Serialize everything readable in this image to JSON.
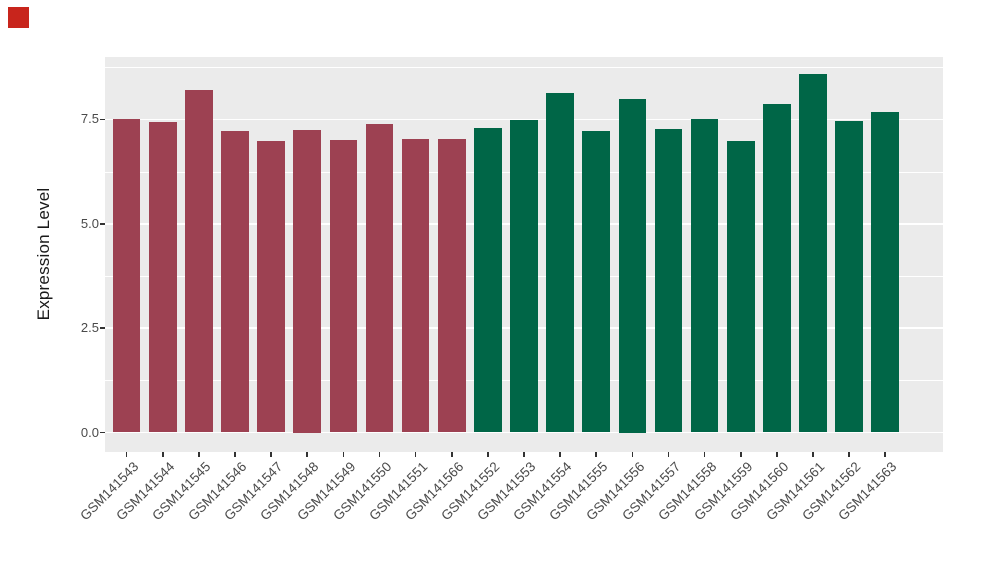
{
  "figure": {
    "background": "#FFFFFF",
    "corner_marker_color": "#C8251C"
  },
  "chart_data": {
    "type": "bar",
    "title": "",
    "xlabel": "",
    "ylabel": "Expression Level",
    "categories": [
      "GSM141543",
      "GSM141544",
      "GSM141545",
      "GSM141546",
      "GSM141547",
      "GSM141548",
      "GSM141549",
      "GSM141550",
      "GSM141551",
      "GSM141566",
      "GSM141552",
      "GSM141553",
      "GSM141554",
      "GSM141555",
      "GSM141556",
      "GSM141557",
      "GSM141558",
      "GSM141559",
      "GSM141560",
      "GSM141561",
      "GSM141562",
      "GSM141563"
    ],
    "values": [
      7.52,
      7.44,
      8.2,
      7.22,
      6.98,
      7.25,
      7.01,
      7.39,
      7.02,
      7.02,
      7.3,
      7.48,
      8.12,
      7.23,
      8.0,
      7.26,
      7.52,
      6.98,
      7.88,
      8.58,
      7.46,
      7.68
    ],
    "groups": [
      "group1",
      "group1",
      "group1",
      "group1",
      "group1",
      "group1",
      "group1",
      "group1",
      "group1",
      "group1",
      "group2",
      "group2",
      "group2",
      "group2",
      "group2",
      "group2",
      "group2",
      "group2",
      "group2",
      "group2",
      "group2",
      "group2"
    ],
    "group_colors": {
      "group1": "#9D4152",
      "group2": "#006647"
    },
    "y_ticks": [
      {
        "label": "0.0",
        "value": 0
      },
      {
        "label": "2.5",
        "value": 2.5
      },
      {
        "label": "5.0",
        "value": 5
      },
      {
        "label": "7.5",
        "value": 7.5
      }
    ],
    "y_minor": [
      1.25,
      3.75,
      6.25,
      8.75
    ],
    "ylim": [
      -0.47,
      9.0
    ],
    "panel_bg": "#EBEBEB",
    "grid_color": "#FFFFFF",
    "axis_text_color": "#4A4A4A",
    "axis_title_color": "#1A1A1A",
    "tick_color": "#333333",
    "legend": "none"
  }
}
